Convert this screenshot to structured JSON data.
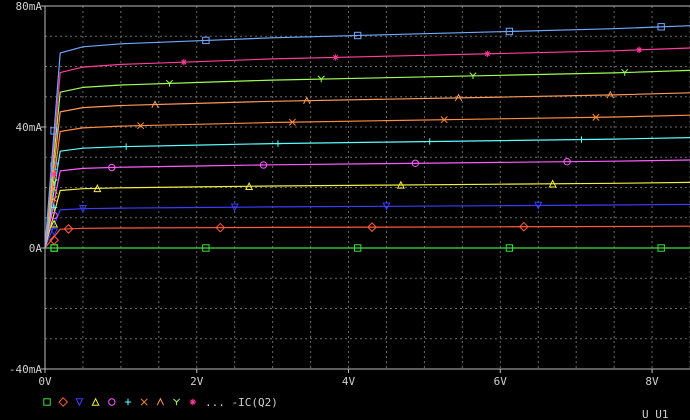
{
  "chart_data": {
    "type": "line",
    "xlabel": "",
    "ylabel": "",
    "xlim": [
      0,
      8.5
    ],
    "ylim": [
      -40,
      80
    ],
    "x_ticks": [
      0,
      2,
      4,
      6,
      8
    ],
    "x_tick_labels": [
      "0V",
      "2V",
      "4V",
      "6V",
      "8V"
    ],
    "y_ticks": [
      -40,
      0,
      40,
      80
    ],
    "y_tick_labels": [
      "-40mA",
      "0A",
      "40mA",
      "80mA"
    ],
    "grid": true,
    "grid_style": "dashed",
    "legend_position": "bottom-left",
    "legend_suffix": " ... -IC(Q2)",
    "corner_label": "U U1",
    "background": "#000000",
    "series": [
      {
        "marker": "square",
        "color": "#3fe03f",
        "values": [
          0.0,
          0.0,
          0.0,
          0.0,
          0.0,
          0.0,
          0.0,
          0.0,
          0.0,
          0.0
        ]
      },
      {
        "marker": "diamond",
        "color": "#ff5a3c",
        "values": [
          0.0,
          6.2,
          6.5,
          6.6,
          6.7,
          6.8,
          6.9,
          7.0,
          7.1,
          7.2
        ]
      },
      {
        "marker": "triangle-down",
        "color": "#3c3cff",
        "values": [
          0.0,
          12.6,
          13.0,
          13.2,
          13.4,
          13.6,
          13.8,
          14.0,
          14.2,
          14.4
        ]
      },
      {
        "marker": "triangle-up",
        "color": "#f0f03c",
        "values": [
          0.0,
          19.0,
          19.6,
          19.9,
          20.2,
          20.5,
          20.8,
          21.1,
          21.4,
          21.7
        ]
      },
      {
        "marker": "circle",
        "color": "#ff5aff",
        "values": [
          0.0,
          25.5,
          26.3,
          26.7,
          27.1,
          27.5,
          27.9,
          28.3,
          28.7,
          29.1
        ]
      },
      {
        "marker": "plus",
        "color": "#5affff",
        "values": [
          0.0,
          32.0,
          33.0,
          33.5,
          34.0,
          34.5,
          35.0,
          35.5,
          36.0,
          36.5
        ]
      },
      {
        "marker": "x",
        "color": "#ff8c3c",
        "values": [
          0.0,
          38.5,
          39.7,
          40.3,
          40.9,
          41.5,
          42.1,
          42.7,
          43.3,
          43.9
        ]
      },
      {
        "marker": "lambda",
        "color": "#ff9955",
        "values": [
          0.0,
          45.0,
          46.4,
          47.1,
          47.8,
          48.5,
          49.2,
          49.9,
          50.6,
          51.3
        ]
      },
      {
        "marker": "y",
        "color": "#a0ff50",
        "values": [
          0.0,
          51.5,
          53.1,
          53.9,
          54.7,
          55.5,
          56.3,
          57.1,
          57.9,
          58.7
        ]
      },
      {
        "marker": "star",
        "color": "#ff3c9b",
        "values": [
          0.0,
          58.0,
          59.8,
          60.7,
          61.6,
          62.5,
          63.4,
          64.3,
          65.2,
          66.1
        ]
      },
      {
        "marker": "square",
        "color": "#6fa8ff",
        "values": [
          0.0,
          64.5,
          66.5,
          67.5,
          68.5,
          69.5,
          70.5,
          71.5,
          72.5,
          73.5
        ]
      }
    ],
    "x": [
      0.0,
      0.2,
      0.5,
      1.0,
      2.0,
      3.0,
      4.5,
      6.0,
      7.5,
      8.5
    ]
  }
}
